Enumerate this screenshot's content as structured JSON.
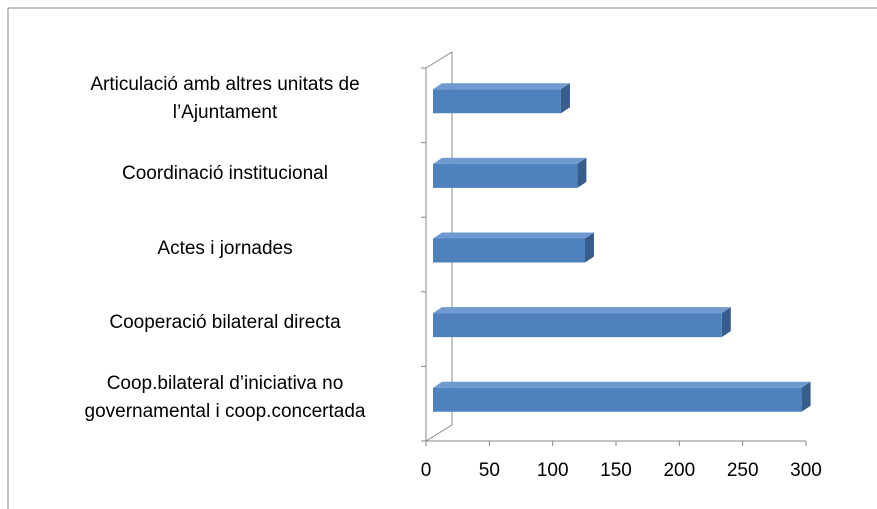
{
  "chart_data": {
    "type": "bar3d_horizontal",
    "categories": [
      "Coop.bilateral d’iniciativa no governamental i coop.concertada",
      "Cooperació bilateral directa",
      "Actes i jornades",
      "Coordinació institucional",
      "Articulació amb altres unitats de l’Ajuntament"
    ],
    "values": [
      291,
      228,
      120,
      114,
      101
    ],
    "color": "#4f81bd",
    "xlim": [
      0,
      300
    ],
    "xticks": [
      0,
      50,
      100,
      150,
      200,
      250,
      300
    ]
  }
}
